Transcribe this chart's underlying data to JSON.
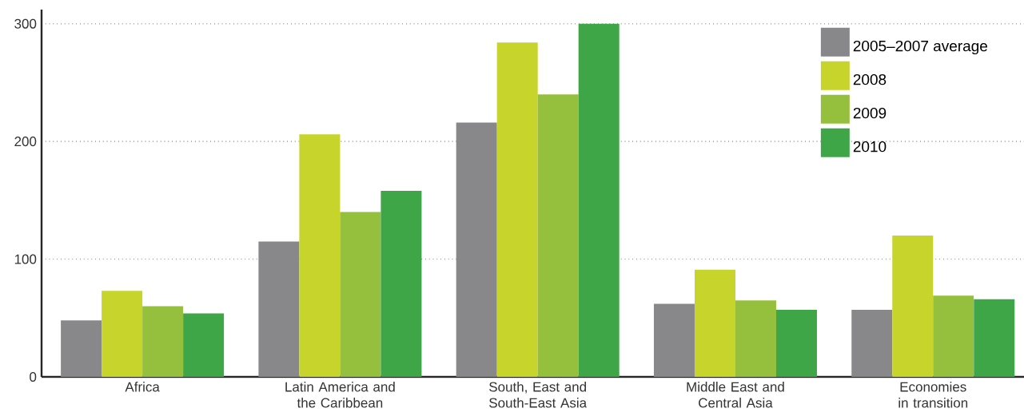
{
  "chart_data": {
    "type": "bar",
    "categories": [
      "Africa",
      "Latin America and the Caribbean",
      "South, East and South-East Asia",
      "Middle East and Central Asia",
      "Economies in transition"
    ],
    "series": [
      {
        "name": "2005–2007 average",
        "color": "#88888a",
        "values": [
          48,
          115,
          216,
          62,
          57
        ]
      },
      {
        "name": "2008",
        "color": "#c6d42c",
        "values": [
          73,
          206,
          284,
          91,
          120
        ]
      },
      {
        "name": "2009",
        "color": "#95c03d",
        "values": [
          60,
          140,
          240,
          65,
          69
        ]
      },
      {
        "name": "2010",
        "color": "#3fa648",
        "values": [
          54,
          158,
          300,
          57,
          66
        ]
      }
    ],
    "ylim": [
      0,
      312
    ],
    "yticks": [
      0,
      100,
      200,
      300
    ],
    "grid": "y",
    "legend": "top right"
  }
}
